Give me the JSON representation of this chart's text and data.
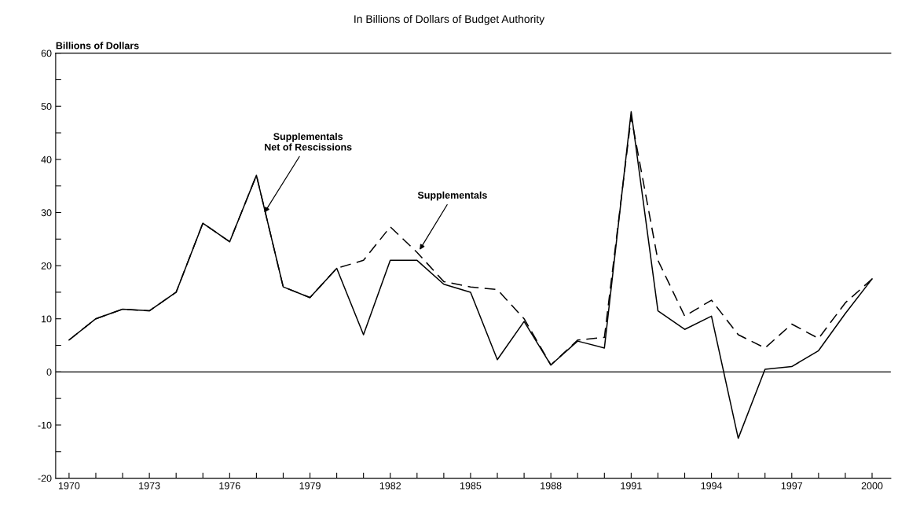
{
  "chart_data": {
    "type": "line",
    "title": "In Billions of Dollars of Budget Authority",
    "ylabel": "Billions of Dollars",
    "x": [
      1970,
      1971,
      1972,
      1973,
      1974,
      1975,
      1976,
      1977,
      1978,
      1979,
      1980,
      1981,
      1982,
      1983,
      1984,
      1985,
      1986,
      1987,
      1988,
      1989,
      1990,
      1991,
      1992,
      1993,
      1994,
      1995,
      1996,
      1997,
      1998,
      1999,
      2000
    ],
    "series": [
      {
        "color": "#000000",
        "line_style": "dashed",
        "values": [
          6,
          10,
          11.8,
          11.5,
          15,
          28,
          24.5,
          37,
          16,
          14,
          19.5,
          21,
          27.3,
          22.5,
          17,
          16,
          15.5,
          10,
          1.3,
          6,
          6.5,
          48,
          21,
          10.5,
          13.5,
          7,
          4.5,
          9,
          6.3,
          13,
          17.5
        ]
      },
      {
        "color": "#000000",
        "line_style": "solid",
        "values": [
          6,
          10,
          11.8,
          11.5,
          15,
          28,
          24.5,
          37,
          16,
          14,
          19.5,
          7,
          21,
          21,
          16.5,
          15,
          2.3,
          9.5,
          1.3,
          5.8,
          4.5,
          49,
          11.5,
          8,
          10.5,
          -12.5,
          0.5,
          1,
          4,
          11,
          17.5
        ]
      }
    ],
    "xlim": [
      1969.5,
      2000.7
    ],
    "ylim": [
      -20,
      60
    ],
    "xticks": [
      1970,
      {
        "value": 1971,
        "label": null
      },
      {
        "value": 1972,
        "label": null
      },
      1973,
      {
        "value": 1974,
        "label": null
      },
      {
        "value": 1975,
        "label": null
      },
      1976,
      {
        "value": 1977,
        "label": null
      },
      {
        "value": 1978,
        "label": null
      },
      1979,
      {
        "value": 1980,
        "label": null
      },
      {
        "value": 1981,
        "label": null
      },
      1982,
      {
        "value": 1983,
        "label": null
      },
      {
        "value": 1984,
        "label": null
      },
      1985,
      {
        "value": 1986,
        "label": null
      },
      {
        "value": 1987,
        "label": null
      },
      1988,
      {
        "value": 1989,
        "label": null
      },
      {
        "value": 1990,
        "label": null
      },
      1991,
      {
        "value": 1992,
        "label": null
      },
      {
        "value": 1993,
        "label": null
      },
      1994,
      {
        "value": 1995,
        "label": null
      },
      {
        "value": 1996,
        "label": null
      },
      1997,
      {
        "value": 1998,
        "label": null
      },
      {
        "value": 1999,
        "label": null
      },
      2000
    ],
    "yticks": [
      -20,
      {
        "value": -15,
        "label": null
      },
      -10,
      {
        "value": -5,
        "label": null
      },
      0,
      {
        "value": 5,
        "label": null
      },
      10,
      {
        "value": 15,
        "label": null
      },
      20,
      {
        "value": 25,
        "label": null
      },
      30,
      {
        "value": 35,
        "label": null
      },
      40,
      {
        "value": 45,
        "label": null
      },
      50,
      {
        "value": 55,
        "label": null
      },
      60
    ],
    "ref_lines": [
      {
        "axis": "y",
        "value": 0,
        "color": "#000000"
      }
    ],
    "annotations": [
      {
        "text": "Supplementals\nNet of Rescissions",
        "x": 1977.3,
        "y": 30
      },
      {
        "text": "Supplementals",
        "x": 1983.1,
        "y": 23
      }
    ],
    "grid": false,
    "legend": false
  }
}
